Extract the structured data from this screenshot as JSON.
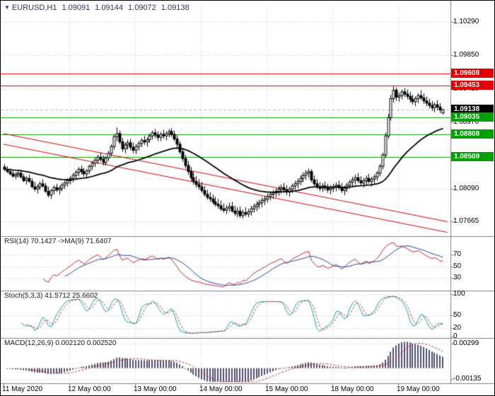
{
  "header": {
    "marker": "▼",
    "symbol_period": "EURUSD,H1",
    "open": "1.09091",
    "high": "1.09144",
    "low": "1.09072",
    "close": "1.09138"
  },
  "colors": {
    "background": "#ffffff",
    "border": "#000000",
    "grid": "#cccccc",
    "separator": "#808080",
    "title_text": "#30306e",
    "label_text": "#1c1c1c",
    "axis_text": "#000000",
    "bull_candle": "#ffffff",
    "bear_candle": "#000000",
    "candle_outline": "#000000",
    "price_ma": "#000000",
    "resistance_level": "#e00000",
    "support_level": "#00a000",
    "current_price_box": "#000000",
    "current_price_line": "#b8b8b8",
    "trendline": "#d40000",
    "rsi_line": "#c22030",
    "rsi_ma_line": "#2040a0",
    "stoch_main": "#00a5a5",
    "stoch_signal": "#d03030",
    "macd_histogram": "#50506e",
    "macd_signal": "#d03030"
  },
  "panels": {
    "rsi": {
      "label": "RSI(14) 70.1427 ->MA(9) 71.6407",
      "period": 14,
      "ma_period": 9,
      "current": "70.1427",
      "ma_current": "71.6407",
      "ticks": [
        {
          "label": "70",
          "value": 70
        },
        {
          "label": "50",
          "value": 50
        },
        {
          "label": "30",
          "value": 30
        }
      ],
      "range": [
        10,
        95
      ]
    },
    "stoch": {
      "label": "Stoch(5,3,3) 41.5712 25.6602",
      "k_period": 5,
      "d_period": 3,
      "slowing": 3,
      "current_k": "41.5712",
      "current_d": "25.6602",
      "ticks": [
        {
          "label": "100",
          "value": 100
        },
        {
          "label": "50",
          "value": 50
        },
        {
          "label": "20",
          "value": 20
        },
        {
          "label": "0",
          "value": 0
        }
      ],
      "range": [
        0,
        100
      ]
    },
    "macd": {
      "label": "MACD(12,26,9) 0.002120 0.002520",
      "fast": 12,
      "slow": 26,
      "signal": 9,
      "current_macd": "0.002120",
      "current_signal": "0.002520",
      "ticks": [
        {
          "label": "0.00299",
          "value": 0.00299
        },
        {
          "label": "-0.00135",
          "value": -0.00135
        }
      ],
      "range": [
        -0.00168,
        0.00326
      ]
    }
  },
  "chart_data": {
    "type": "candlestick",
    "symbol": "EURUSD",
    "timeframe": "H1",
    "current_ohlc": {
      "open": 1.09091,
      "high": 1.09144,
      "low": 1.09072,
      "close": 1.09138
    },
    "y_axis": {
      "min": 1.07665,
      "max": 1.1029,
      "ticks": [
        {
          "label": "1.10290",
          "value": 1.1029
        },
        {
          "label": "1.09850",
          "value": 1.0985
        },
        {
          "label": "1.09410",
          "value": 1.0941
        },
        {
          "label": "1.08970",
          "value": 1.0897
        },
        {
          "label": "1.08530",
          "value": 1.0853
        },
        {
          "label": "1.08090",
          "value": 1.0809
        },
        {
          "label": "1.07665",
          "value": 1.07665
        }
      ]
    },
    "x_axis": {
      "labels": [
        {
          "text": "11 May 2020",
          "hour": 0
        },
        {
          "text": "12 May 00:00",
          "hour": 24
        },
        {
          "text": "13 May 00:00",
          "hour": 48
        },
        {
          "text": "14 May 00:00",
          "hour": 72
        },
        {
          "text": "15 May 00:00",
          "hour": 96
        },
        {
          "text": "18 May 00:00",
          "hour": 120
        },
        {
          "text": "19 May 00:00",
          "hour": 144
        }
      ]
    },
    "levels": [
      {
        "label": "1.09608",
        "value": 1.09608,
        "kind": "resistance"
      },
      {
        "label": "1.09453",
        "value": 1.09453,
        "kind": "resistance"
      },
      {
        "label": "1.09138",
        "value": 1.09138,
        "kind": "current"
      },
      {
        "label": "1.09035",
        "value": 1.09035,
        "kind": "support"
      },
      {
        "label": "1.08808",
        "value": 1.08808,
        "kind": "support"
      },
      {
        "label": "1.08509",
        "value": 1.08509,
        "kind": "support"
      }
    ],
    "trendlines": [
      {
        "from_bar": 0,
        "from_price": 1.0882,
        "to_bar": 162,
        "to_price": 1.0766
      },
      {
        "from_bar": 0,
        "from_price": 1.0868,
        "to_bar": 162,
        "to_price": 1.0752
      }
    ],
    "moving_average": {
      "method": "smoothed",
      "period": 20
    },
    "candles": [
      [
        1.0838,
        1.0842,
        1.0833,
        1.0835
      ],
      [
        1.0835,
        1.0839,
        1.083,
        1.0832
      ],
      [
        1.0832,
        1.0836,
        1.0827,
        1.0829
      ],
      [
        1.0829,
        1.0833,
        1.0824,
        1.0826
      ],
      [
        1.0826,
        1.0831,
        1.0822,
        1.0828
      ],
      [
        1.0828,
        1.0833,
        1.0824,
        1.083
      ],
      [
        1.083,
        1.0834,
        1.0823,
        1.0825
      ],
      [
        1.0825,
        1.0829,
        1.0818,
        1.082
      ],
      [
        1.082,
        1.0826,
        1.0815,
        1.0823
      ],
      [
        1.0823,
        1.0828,
        1.0817,
        1.0819
      ],
      [
        1.0819,
        1.0823,
        1.081,
        1.0812
      ],
      [
        1.0812,
        1.0818,
        1.0806,
        1.0809
      ],
      [
        1.0809,
        1.0815,
        1.0803,
        1.0812
      ],
      [
        1.0812,
        1.0819,
        1.0808,
        1.0816
      ],
      [
        1.0816,
        1.0822,
        1.0811,
        1.0813
      ],
      [
        1.0813,
        1.0817,
        1.0804,
        1.0806
      ],
      [
        1.0806,
        1.0812,
        1.0798,
        1.0801
      ],
      [
        1.0801,
        1.0809,
        1.0796,
        1.0807
      ],
      [
        1.0807,
        1.0814,
        1.0802,
        1.0811
      ],
      [
        1.0811,
        1.0816,
        1.0805,
        1.0808
      ],
      [
        1.0808,
        1.0813,
        1.0802,
        1.081
      ],
      [
        1.081,
        1.0817,
        1.0806,
        1.0814
      ],
      [
        1.0814,
        1.082,
        1.0809,
        1.0817
      ],
      [
        1.0817,
        1.0823,
        1.0812,
        1.082
      ],
      [
        1.082,
        1.0826,
        1.0815,
        1.0823
      ],
      [
        1.0823,
        1.083,
        1.0818,
        1.0827
      ],
      [
        1.0827,
        1.0834,
        1.0822,
        1.0831
      ],
      [
        1.0831,
        1.0838,
        1.0826,
        1.0835
      ],
      [
        1.0835,
        1.084,
        1.0828,
        1.0832
      ],
      [
        1.0832,
        1.0837,
        1.0825,
        1.0829
      ],
      [
        1.0829,
        1.0835,
        1.0823,
        1.0833
      ],
      [
        1.0833,
        1.0841,
        1.0829,
        1.0839
      ],
      [
        1.0839,
        1.0846,
        1.0834,
        1.0843
      ],
      [
        1.0843,
        1.085,
        1.0838,
        1.0847
      ],
      [
        1.0847,
        1.0854,
        1.0842,
        1.0851
      ],
      [
        1.0851,
        1.0857,
        1.0845,
        1.0848
      ],
      [
        1.0848,
        1.0853,
        1.084,
        1.0844
      ],
      [
        1.0844,
        1.0852,
        1.084,
        1.085
      ],
      [
        1.085,
        1.0859,
        1.0846,
        1.0856
      ],
      [
        1.0856,
        1.0868,
        1.0852,
        1.0865
      ],
      [
        1.0865,
        1.0881,
        1.0861,
        1.0878
      ],
      [
        1.0878,
        1.089,
        1.0872,
        1.0882
      ],
      [
        1.0882,
        1.0886,
        1.0868,
        1.0871
      ],
      [
        1.0871,
        1.0876,
        1.0858,
        1.0862
      ],
      [
        1.0862,
        1.087,
        1.0856,
        1.0867
      ],
      [
        1.0867,
        1.0874,
        1.0861,
        1.087
      ],
      [
        1.087,
        1.0875,
        1.086,
        1.0864
      ],
      [
        1.0864,
        1.087,
        1.0856,
        1.086
      ],
      [
        1.086,
        1.0868,
        1.0855,
        1.0865
      ],
      [
        1.0865,
        1.0872,
        1.086,
        1.0869
      ],
      [
        1.0869,
        1.0876,
        1.0864,
        1.0873
      ],
      [
        1.0873,
        1.0879,
        1.0867,
        1.0871
      ],
      [
        1.0871,
        1.0877,
        1.0865,
        1.0874
      ],
      [
        1.0874,
        1.0882,
        1.087,
        1.0879
      ],
      [
        1.0879,
        1.0886,
        1.0874,
        1.0883
      ],
      [
        1.0883,
        1.0888,
        1.0876,
        1.088
      ],
      [
        1.088,
        1.0885,
        1.0872,
        1.0877
      ],
      [
        1.0877,
        1.0884,
        1.0872,
        1.0881
      ],
      [
        1.0881,
        1.0887,
        1.0875,
        1.0879
      ],
      [
        1.0879,
        1.0885,
        1.0873,
        1.0882
      ],
      [
        1.0882,
        1.0888,
        1.0877,
        1.0885
      ],
      [
        1.0885,
        1.0889,
        1.0878,
        1.0881
      ],
      [
        1.0881,
        1.0886,
        1.0872,
        1.0875
      ],
      [
        1.0875,
        1.088,
        1.0864,
        1.0868
      ],
      [
        1.0868,
        1.0872,
        1.0855,
        1.0858
      ],
      [
        1.0858,
        1.0863,
        1.0845,
        1.0849
      ],
      [
        1.0849,
        1.0854,
        1.0836,
        1.084
      ],
      [
        1.084,
        1.0846,
        1.0828,
        1.0832
      ],
      [
        1.0832,
        1.0838,
        1.082,
        1.0824
      ],
      [
        1.0824,
        1.0831,
        1.0815,
        1.0819
      ],
      [
        1.0819,
        1.0826,
        1.0811,
        1.0815
      ],
      [
        1.0815,
        1.0822,
        1.0808,
        1.0812
      ],
      [
        1.0812,
        1.0818,
        1.0804,
        1.0807
      ],
      [
        1.0807,
        1.0813,
        1.0799,
        1.0802
      ],
      [
        1.0802,
        1.0808,
        1.0795,
        1.0798
      ],
      [
        1.0798,
        1.0805,
        1.0792,
        1.0796
      ],
      [
        1.0796,
        1.0802,
        1.0789,
        1.0792
      ],
      [
        1.0792,
        1.0799,
        1.0786,
        1.0789
      ],
      [
        1.0789,
        1.0796,
        1.0783,
        1.0787
      ],
      [
        1.0787,
        1.0794,
        1.078,
        1.0783
      ],
      [
        1.0783,
        1.079,
        1.0778,
        1.0781
      ],
      [
        1.0781,
        1.0788,
        1.0776,
        1.0784
      ],
      [
        1.0784,
        1.0791,
        1.0779,
        1.0786
      ],
      [
        1.0786,
        1.0792,
        1.0778,
        1.078
      ],
      [
        1.078,
        1.0787,
        1.0774,
        1.0777
      ],
      [
        1.0777,
        1.0785,
        1.0772,
        1.078
      ],
      [
        1.078,
        1.0786,
        1.0771,
        1.0774
      ],
      [
        1.0774,
        1.0782,
        1.077,
        1.0778
      ],
      [
        1.0778,
        1.0785,
        1.0773,
        1.0776
      ],
      [
        1.0776,
        1.0783,
        1.0772,
        1.0779
      ],
      [
        1.0779,
        1.0787,
        1.0774,
        1.0783
      ],
      [
        1.0783,
        1.079,
        1.0778,
        1.0786
      ],
      [
        1.0786,
        1.0793,
        1.078,
        1.0789
      ],
      [
        1.0789,
        1.0795,
        1.0783,
        1.0791
      ],
      [
        1.0791,
        1.0798,
        1.0785,
        1.0794
      ],
      [
        1.0794,
        1.08,
        1.0788,
        1.0796
      ],
      [
        1.0796,
        1.0803,
        1.0791,
        1.0799
      ],
      [
        1.0799,
        1.0806,
        1.0794,
        1.0802
      ],
      [
        1.0802,
        1.0808,
        1.0796,
        1.0804
      ],
      [
        1.0804,
        1.081,
        1.0798,
        1.0806
      ],
      [
        1.0806,
        1.0813,
        1.08,
        1.0809
      ],
      [
        1.0809,
        1.0815,
        1.0803,
        1.0811
      ],
      [
        1.0811,
        1.0817,
        1.0804,
        1.0808
      ],
      [
        1.0808,
        1.0814,
        1.0801,
        1.0805
      ],
      [
        1.0805,
        1.0812,
        1.0799,
        1.0809
      ],
      [
        1.0809,
        1.0816,
        1.0804,
        1.0813
      ],
      [
        1.0813,
        1.082,
        1.0808,
        1.0816
      ],
      [
        1.0816,
        1.0823,
        1.081,
        1.0819
      ],
      [
        1.0819,
        1.0827,
        1.0814,
        1.0823
      ],
      [
        1.0823,
        1.0831,
        1.0818,
        1.0827
      ],
      [
        1.0827,
        1.0834,
        1.0821,
        1.083
      ],
      [
        1.083,
        1.0836,
        1.0824,
        1.0832
      ],
      [
        1.0832,
        1.0835,
        1.0818,
        1.0821
      ],
      [
        1.0821,
        1.0827,
        1.0813,
        1.0816
      ],
      [
        1.0816,
        1.0822,
        1.0809,
        1.0812
      ],
      [
        1.0812,
        1.0818,
        1.0806,
        1.081
      ],
      [
        1.081,
        1.0817,
        1.0805,
        1.0813
      ],
      [
        1.0813,
        1.0819,
        1.0807,
        1.0811
      ],
      [
        1.0811,
        1.0816,
        1.0804,
        1.0808
      ],
      [
        1.0808,
        1.0814,
        1.0802,
        1.081
      ],
      [
        1.081,
        1.0816,
        1.0805,
        1.0812
      ],
      [
        1.0812,
        1.0818,
        1.0806,
        1.0814
      ],
      [
        1.0814,
        1.082,
        1.0808,
        1.0811
      ],
      [
        1.0811,
        1.0817,
        1.0804,
        1.0807
      ],
      [
        1.0807,
        1.0813,
        1.0801,
        1.081
      ],
      [
        1.081,
        1.0817,
        1.0805,
        1.0814
      ],
      [
        1.0814,
        1.0821,
        1.0809,
        1.0818
      ],
      [
        1.0818,
        1.0825,
        1.0812,
        1.0821
      ],
      [
        1.0821,
        1.0828,
        1.0815,
        1.0824
      ],
      [
        1.0824,
        1.083,
        1.0817,
        1.082
      ],
      [
        1.082,
        1.0826,
        1.0813,
        1.0817
      ],
      [
        1.0817,
        1.0824,
        1.0811,
        1.082
      ],
      [
        1.082,
        1.0827,
        1.0814,
        1.0823
      ],
      [
        1.0823,
        1.0829,
        1.0816,
        1.0819
      ],
      [
        1.0819,
        1.0825,
        1.0812,
        1.0822
      ],
      [
        1.0822,
        1.0828,
        1.0815,
        1.0825
      ],
      [
        1.0825,
        1.0833,
        1.082,
        1.083
      ],
      [
        1.083,
        1.0842,
        1.0826,
        1.0839
      ],
      [
        1.0839,
        1.0857,
        1.0835,
        1.0854
      ],
      [
        1.0854,
        1.0883,
        1.085,
        1.0879
      ],
      [
        1.0879,
        1.0908,
        1.0875,
        1.0903
      ],
      [
        1.0903,
        1.0933,
        1.0899,
        1.0928
      ],
      [
        1.0928,
        1.0944,
        1.0923,
        1.0939
      ],
      [
        1.0939,
        1.0943,
        1.0925,
        1.093
      ],
      [
        1.093,
        1.0936,
        1.0924,
        1.0932
      ],
      [
        1.0932,
        1.094,
        1.0927,
        1.0937
      ],
      [
        1.0937,
        1.0942,
        1.093,
        1.0934
      ],
      [
        1.0934,
        1.094,
        1.0927,
        1.0931
      ],
      [
        1.0931,
        1.0937,
        1.0923,
        1.0927
      ],
      [
        1.0927,
        1.0933,
        1.092,
        1.0924
      ],
      [
        1.0924,
        1.0931,
        1.0918,
        1.0928
      ],
      [
        1.0928,
        1.0935,
        1.0922,
        1.0932
      ],
      [
        1.0932,
        1.0939,
        1.0926,
        1.0929
      ],
      [
        1.0929,
        1.0935,
        1.0921,
        1.0925
      ],
      [
        1.0925,
        1.0931,
        1.0918,
        1.0922
      ],
      [
        1.0922,
        1.0928,
        1.0915,
        1.0919
      ],
      [
        1.0919,
        1.0925,
        1.0912,
        1.0916
      ],
      [
        1.0916,
        1.0923,
        1.091,
        1.092
      ],
      [
        1.092,
        1.0926,
        1.0913,
        1.0917
      ],
      [
        1.0917,
        1.0922,
        1.0909,
        1.0913
      ],
      [
        1.09091,
        1.09144,
        1.09072,
        1.09138
      ]
    ]
  }
}
